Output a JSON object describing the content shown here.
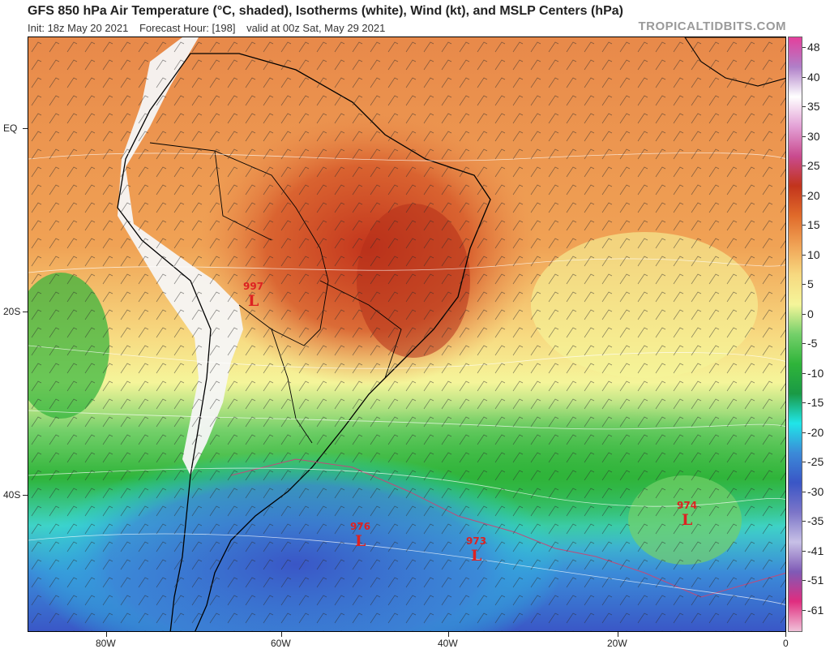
{
  "header": {
    "title": "GFS 850 hPa Air Temperature (°C, shaded), Isotherms (white), Wind (kt), and MSLP Centers (hPa)",
    "init": "Init: 18z May 20 2021",
    "forecast_hour": "Forecast Hour: [198]",
    "valid": "valid at 00z Sat, May 29 2021",
    "brand": "TROPICALTIDBITS.COM"
  },
  "lat_labels": [
    "EQ",
    "20S",
    "40S"
  ],
  "lon_labels": [
    "80W",
    "60W",
    "40W",
    "20W",
    "0"
  ],
  "colorbar": {
    "labels": [
      "48",
      "40",
      "35",
      "30",
      "25",
      "20",
      "15",
      "10",
      "5",
      "0",
      "-5",
      "-10",
      "-15",
      "-20",
      "-25",
      "-30",
      "-35",
      "-41",
      "-51",
      "-61"
    ],
    "colors": [
      "#e43f9c",
      "#b07fc8",
      "#ffffff",
      "#e3a1d6",
      "#c94b8f",
      "#c2341c",
      "#e06a2a",
      "#f0a255",
      "#f7d980",
      "#f5f59a",
      "#74d06a",
      "#2fb43a",
      "#1a9a45",
      "#20e5e8",
      "#3b8ad8",
      "#3a56c6",
      "#7c75c8",
      "#c7c0e6",
      "#7f5ab6",
      "#e02d7f",
      "#f0c0d8"
    ]
  },
  "lows": [
    {
      "value": "997",
      "symbol": "L"
    },
    {
      "value": "976",
      "symbol": "L"
    },
    {
      "value": "973",
      "symbol": "L"
    },
    {
      "value": "974",
      "symbol": "L"
    }
  ]
}
